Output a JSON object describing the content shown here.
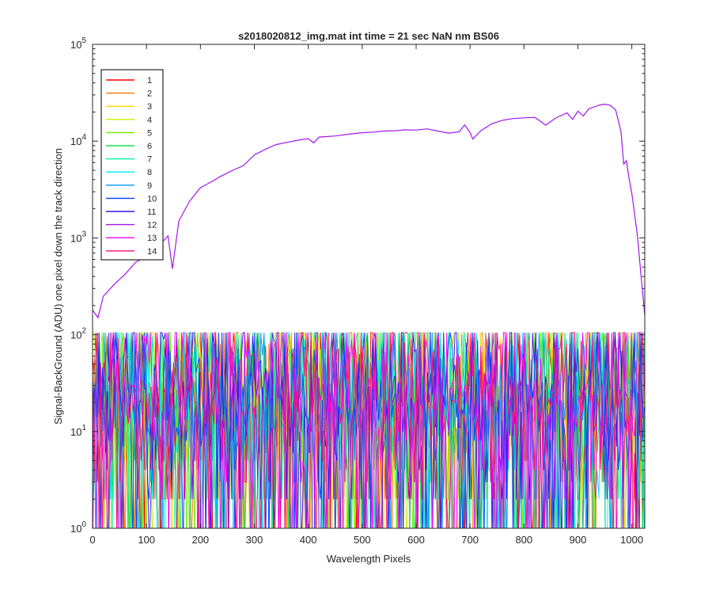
{
  "chart_data": {
    "type": "line",
    "title": "s2018020812_img.mat int time = 21 sec  NaN nm BS06",
    "xlabel": "Wavelength Pixels",
    "ylabel": "Signal-BackGround (ADU) one pixel down the track direction",
    "xlim": [
      0,
      1024
    ],
    "ylim": [
      1,
      100000
    ],
    "yscale": "log",
    "xticks": [
      0,
      100,
      200,
      300,
      400,
      500,
      600,
      700,
      800,
      900,
      1000
    ],
    "yticks": [
      {
        "base": "10",
        "exp": "0",
        "value": 1
      },
      {
        "base": "10",
        "exp": "1",
        "value": 10
      },
      {
        "base": "10",
        "exp": "2",
        "value": 100
      },
      {
        "base": "10",
        "exp": "3",
        "value": 1000
      },
      {
        "base": "10",
        "exp": "4",
        "value": 10000
      },
      {
        "base": "10",
        "exp": "5",
        "value": 100000
      }
    ],
    "grid": false,
    "legend_position": "top-left",
    "series": [
      {
        "name": "1",
        "color": "#ff0000",
        "kind": "noise"
      },
      {
        "name": "2",
        "color": "#ff7300",
        "kind": "noise"
      },
      {
        "name": "3",
        "color": "#ffd400",
        "kind": "noise"
      },
      {
        "name": "4",
        "color": "#c8f000",
        "kind": "noise"
      },
      {
        "name": "5",
        "color": "#6ef000",
        "kind": "noise"
      },
      {
        "name": "6",
        "color": "#14e64b",
        "kind": "noise"
      },
      {
        "name": "7",
        "color": "#00f0a0",
        "kind": "noise"
      },
      {
        "name": "8",
        "color": "#00e6e6",
        "kind": "noise"
      },
      {
        "name": "9",
        "color": "#0096ff",
        "kind": "noise"
      },
      {
        "name": "10",
        "color": "#0a3cff",
        "kind": "noise"
      },
      {
        "name": "11",
        "color": "#3c14e6",
        "kind": "noise"
      },
      {
        "name": "12",
        "color": "#a514f0",
        "kind": "signal",
        "points": [
          [
            0,
            180
          ],
          [
            10,
            150
          ],
          [
            20,
            250
          ],
          [
            40,
            330
          ],
          [
            60,
            420
          ],
          [
            80,
            560
          ],
          [
            100,
            650
          ],
          [
            120,
            800
          ],
          [
            140,
            1050
          ],
          [
            148,
            480
          ],
          [
            160,
            1500
          ],
          [
            180,
            2400
          ],
          [
            200,
            3300
          ],
          [
            220,
            3800
          ],
          [
            240,
            4400
          ],
          [
            260,
            5000
          ],
          [
            280,
            5600
          ],
          [
            300,
            7200
          ],
          [
            320,
            8200
          ],
          [
            340,
            9200
          ],
          [
            360,
            9700
          ],
          [
            380,
            10200
          ],
          [
            400,
            10600
          ],
          [
            410,
            9600
          ],
          [
            420,
            11000
          ],
          [
            450,
            11300
          ],
          [
            480,
            11900
          ],
          [
            500,
            12200
          ],
          [
            520,
            12400
          ],
          [
            540,
            12700
          ],
          [
            560,
            12800
          ],
          [
            580,
            13100
          ],
          [
            600,
            13000
          ],
          [
            620,
            13400
          ],
          [
            640,
            12700
          ],
          [
            660,
            12100
          ],
          [
            680,
            12500
          ],
          [
            690,
            14700
          ],
          [
            700,
            12300
          ],
          [
            705,
            10500
          ],
          [
            720,
            12800
          ],
          [
            740,
            15100
          ],
          [
            760,
            16400
          ],
          [
            780,
            17100
          ],
          [
            800,
            17400
          ],
          [
            820,
            17600
          ],
          [
            830,
            16100
          ],
          [
            840,
            14600
          ],
          [
            860,
            17500
          ],
          [
            880,
            19600
          ],
          [
            890,
            16800
          ],
          [
            900,
            20400
          ],
          [
            910,
            18200
          ],
          [
            920,
            21500
          ],
          [
            940,
            23600
          ],
          [
            950,
            24100
          ],
          [
            960,
            23500
          ],
          [
            970,
            21000
          ],
          [
            980,
            12500
          ],
          [
            985,
            5800
          ],
          [
            990,
            6300
          ],
          [
            995,
            4100
          ],
          [
            1000,
            2900
          ],
          [
            1010,
            1100
          ],
          [
            1018,
            360
          ],
          [
            1024,
            160
          ]
        ]
      },
      {
        "name": "13",
        "color": "#ff00ff",
        "kind": "noise"
      },
      {
        "name": "14",
        "color": "#ff0a78",
        "kind": "noise"
      }
    ]
  }
}
